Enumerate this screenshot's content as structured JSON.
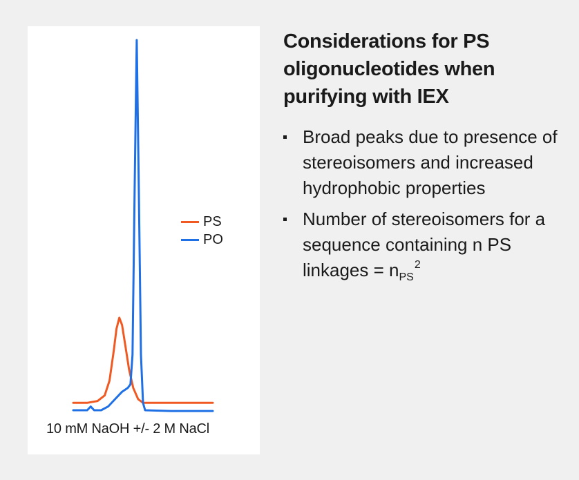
{
  "heading": "Considerations for PS oligonucleotides when purifying with IEX",
  "bullets": [
    {
      "text": "Broad peaks due to presence of stereoisomers and increased hydrophobic properties"
    },
    {
      "text_before": "Number of stereoisomers for a sequence containing n PS linkages = n",
      "subscript": "PS",
      "superscript": "2"
    }
  ],
  "colors": {
    "PS": "#f05a22",
    "PO": "#1f6fe5",
    "text": "#1a1a1a",
    "background": "#f0f0f0",
    "panel": "#ffffff"
  },
  "chart_data": {
    "type": "line",
    "title": "",
    "xlabel": "10 mM NaOH +/- 2 M NaCl",
    "ylabel": "",
    "grid": false,
    "axes_visible": false,
    "legend": "right",
    "series": [
      {
        "name": "PS",
        "points": [
          [
            0,
            0.02
          ],
          [
            20,
            0.02
          ],
          [
            35,
            0.025
          ],
          [
            45,
            0.04
          ],
          [
            52,
            0.08
          ],
          [
            58,
            0.16
          ],
          [
            62,
            0.22
          ],
          [
            66,
            0.25
          ],
          [
            70,
            0.23
          ],
          [
            75,
            0.17
          ],
          [
            80,
            0.11
          ],
          [
            86,
            0.06
          ],
          [
            93,
            0.03
          ],
          [
            100,
            0.02
          ],
          [
            130,
            0.02
          ],
          [
            200,
            0.02
          ]
        ]
      },
      {
        "name": "PO",
        "points": [
          [
            0,
            0.0
          ],
          [
            20,
            0.0
          ],
          [
            25,
            0.01
          ],
          [
            30,
            0.0
          ],
          [
            40,
            0.0
          ],
          [
            50,
            0.01
          ],
          [
            60,
            0.03
          ],
          [
            70,
            0.05
          ],
          [
            78,
            0.06
          ],
          [
            82,
            0.07
          ],
          [
            85,
            0.15
          ],
          [
            88,
            0.6
          ],
          [
            91,
            1.0
          ],
          [
            94,
            0.6
          ],
          [
            97,
            0.15
          ],
          [
            100,
            0.02
          ],
          [
            103,
            0.0
          ],
          [
            140,
            -0.002
          ],
          [
            200,
            -0.002
          ]
        ]
      }
    ]
  }
}
